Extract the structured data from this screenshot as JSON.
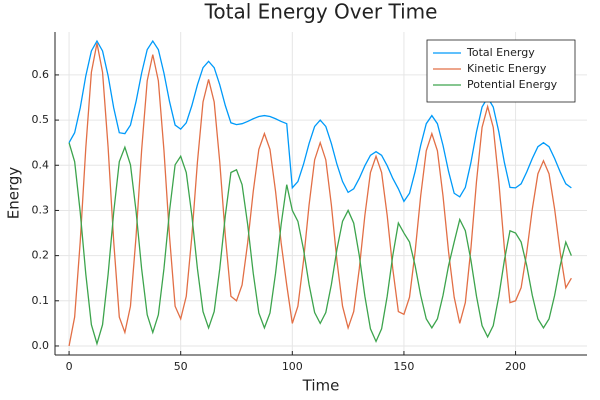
{
  "chart_data": {
    "type": "line",
    "title": "Total Energy Over Time",
    "x_label": "Time",
    "y_label": "Energy",
    "x": [
      0,
      2.5,
      5,
      7.5,
      10,
      12.5,
      15,
      17.5,
      20,
      22.5,
      25,
      27.5,
      30,
      32.5,
      35,
      37.5,
      40,
      42.5,
      45,
      47.5,
      50,
      52.5,
      55,
      57.5,
      60,
      62.5,
      65,
      67.5,
      70,
      72.5,
      75,
      77.5,
      80,
      82.5,
      85,
      87.5,
      90,
      92.5,
      95,
      97.5,
      100,
      102.5,
      105,
      107.5,
      110,
      112.5,
      115,
      117.5,
      120,
      122.5,
      125,
      127.5,
      130,
      132.5,
      135,
      137.5,
      140,
      142.5,
      145,
      147.5,
      150,
      152.5,
      155,
      157.5,
      160,
      162.5,
      165,
      167.5,
      170,
      172.5,
      175,
      177.5,
      180,
      182.5,
      185,
      187.5,
      190,
      192.5,
      195,
      197.5,
      200,
      202.5,
      205,
      207.5,
      210,
      212.5,
      215,
      217.5,
      220,
      222.5,
      225
    ],
    "series": [
      {
        "name": "Total Energy",
        "color": "#009af9",
        "values": [
          0.45,
          0.472,
          0.527,
          0.598,
          0.653,
          0.675,
          0.653,
          0.598,
          0.527,
          0.472,
          0.47,
          0.489,
          0.541,
          0.604,
          0.656,
          0.675,
          0.656,
          0.604,
          0.541,
          0.489,
          0.48,
          0.494,
          0.532,
          0.578,
          0.616,
          0.63,
          0.616,
          0.578,
          0.532,
          0.494,
          0.49,
          0.492,
          0.497,
          0.503,
          0.508,
          0.51,
          0.508,
          0.503,
          0.497,
          0.492,
          0.35,
          0.364,
          0.402,
          0.448,
          0.486,
          0.5,
          0.486,
          0.448,
          0.402,
          0.364,
          0.34,
          0.348,
          0.371,
          0.399,
          0.422,
          0.43,
          0.422,
          0.399,
          0.371,
          0.348,
          0.32,
          0.338,
          0.386,
          0.444,
          0.492,
          0.51,
          0.492,
          0.444,
          0.386,
          0.338,
          0.33,
          0.351,
          0.406,
          0.474,
          0.529,
          0.55,
          0.529,
          0.474,
          0.406,
          0.351,
          0.35,
          0.359,
          0.385,
          0.415,
          0.441,
          0.45,
          0.441,
          0.415,
          0.385,
          0.359,
          0.35
        ]
      },
      {
        "name": "Kinetic Energy",
        "color": "#e26f46",
        "values": [
          0,
          0.064,
          0.231,
          0.439,
          0.606,
          0.67,
          0.606,
          0.439,
          0.231,
          0.064,
          0.03,
          0.088,
          0.242,
          0.433,
          0.587,
          0.645,
          0.587,
          0.433,
          0.242,
          0.088,
          0.06,
          0.11,
          0.243,
          0.407,
          0.54,
          0.59,
          0.54,
          0.407,
          0.243,
          0.11,
          0.1,
          0.135,
          0.228,
          0.342,
          0.435,
          0.47,
          0.435,
          0.342,
          0.228,
          0.135,
          0.05,
          0.088,
          0.188,
          0.312,
          0.412,
          0.45,
          0.412,
          0.312,
          0.188,
          0.088,
          0.04,
          0.076,
          0.171,
          0.289,
          0.384,
          0.42,
          0.384,
          0.289,
          0.171,
          0.076,
          0.07,
          0.108,
          0.208,
          0.332,
          0.432,
          0.47,
          0.432,
          0.332,
          0.208,
          0.108,
          0.05,
          0.096,
          0.216,
          0.364,
          0.484,
          0.53,
          0.484,
          0.364,
          0.216,
          0.096,
          0.1,
          0.129,
          0.207,
          0.303,
          0.381,
          0.41,
          0.381,
          0.303,
          0.207,
          0.129,
          0.15
        ]
      },
      {
        "name": "Potential Energy",
        "color": "#3da44d",
        "values": [
          0.45,
          0.408,
          0.296,
          0.159,
          0.047,
          0.005,
          0.047,
          0.159,
          0.296,
          0.408,
          0.44,
          0.401,
          0.299,
          0.171,
          0.069,
          0.03,
          0.069,
          0.171,
          0.299,
          0.401,
          0.42,
          0.384,
          0.289,
          0.171,
          0.076,
          0.04,
          0.076,
          0.171,
          0.289,
          0.384,
          0.39,
          0.357,
          0.269,
          0.161,
          0.073,
          0.04,
          0.073,
          0.161,
          0.269,
          0.357,
          0.3,
          0.276,
          0.214,
          0.136,
          0.074,
          0.05,
          0.074,
          0.136,
          0.214,
          0.276,
          0.3,
          0.272,
          0.2,
          0.11,
          0.038,
          0.01,
          0.038,
          0.11,
          0.2,
          0.272,
          0.25,
          0.23,
          0.178,
          0.112,
          0.06,
          0.04,
          0.06,
          0.112,
          0.178,
          0.23,
          0.28,
          0.255,
          0.19,
          0.11,
          0.045,
          0.02,
          0.045,
          0.11,
          0.19,
          0.255,
          0.25,
          0.23,
          0.178,
          0.112,
          0.06,
          0.04,
          0.06,
          0.112,
          0.178,
          0.23,
          0.2
        ]
      }
    ],
    "xlim": [
      -6.3,
      232
    ],
    "ylim": [
      -0.02,
      0.695
    ],
    "xticks": [
      0,
      50,
      100,
      150,
      200
    ],
    "yticks": [
      {
        "value": 0,
        "label": "0.0"
      },
      {
        "value": 0.1,
        "label": "0.1"
      },
      {
        "value": 0.2,
        "label": "0.2"
      },
      {
        "value": 0.3,
        "label": "0.3"
      },
      {
        "value": 0.4,
        "label": "0.4"
      },
      {
        "value": 0.5,
        "label": "0.5"
      },
      {
        "value": 0.6,
        "label": "0.6"
      }
    ],
    "grid": true,
    "legend": "top-right"
  }
}
